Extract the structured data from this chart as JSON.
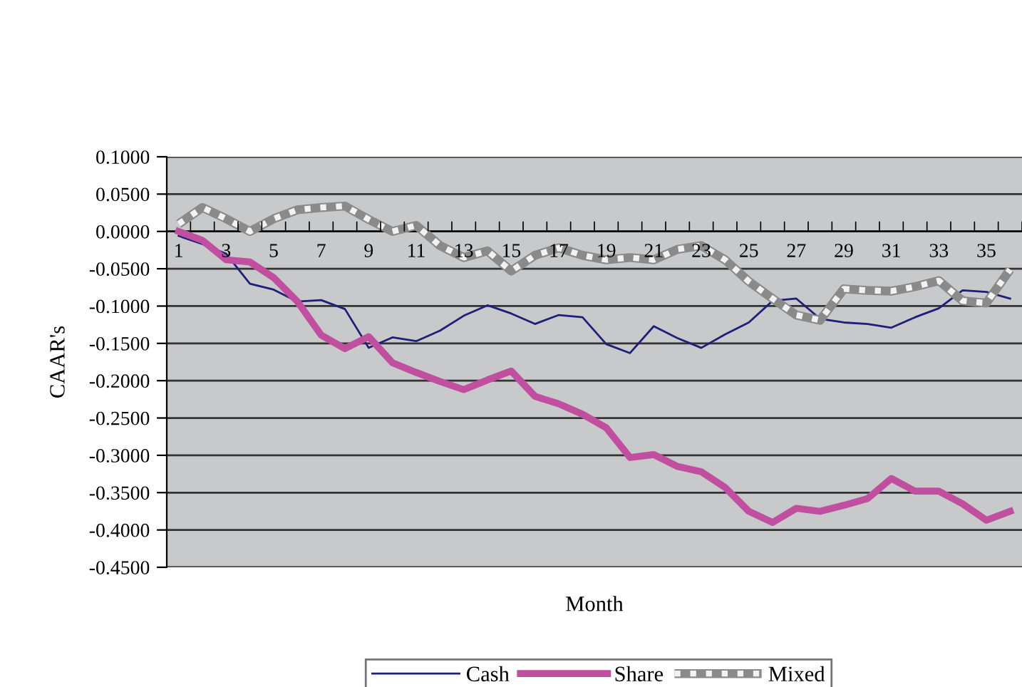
{
  "chart_data": {
    "type": "line",
    "xlabel": "Month",
    "ylabel": "CAAR's",
    "categories": [
      "1",
      null,
      "3",
      null,
      "5",
      null,
      "7",
      null,
      "9",
      null,
      "11",
      null,
      "13",
      null,
      "15",
      null,
      "17",
      null,
      "19",
      null,
      "21",
      null,
      "23",
      null,
      "25",
      null,
      "27",
      null,
      "29",
      null,
      "31",
      null,
      "33",
      null,
      "35",
      null
    ],
    "series": [
      {
        "name": "Cash",
        "color": "#1f1f7a",
        "line_style": "solid",
        "values": [
          -0.006,
          -0.017,
          -0.03,
          -0.07,
          -0.078,
          -0.094,
          -0.092,
          -0.104,
          -0.156,
          -0.142,
          -0.147,
          -0.133,
          -0.113,
          -0.099,
          -0.11,
          -0.124,
          -0.112,
          -0.115,
          -0.151,
          -0.163,
          -0.127,
          -0.143,
          -0.156,
          -0.138,
          -0.122,
          -0.093,
          -0.09,
          -0.117,
          -0.122,
          -0.124,
          -0.129,
          -0.115,
          -0.103,
          -0.079,
          -0.081,
          -0.09
        ]
      },
      {
        "name": "Share",
        "color": "#c0509f",
        "line_style": "solid",
        "values": [
          0.0,
          -0.012,
          -0.038,
          -0.041,
          -0.062,
          -0.094,
          -0.139,
          -0.157,
          -0.141,
          -0.176,
          -0.189,
          -0.201,
          -0.212,
          -0.199,
          -0.187,
          -0.221,
          -0.231,
          -0.245,
          -0.263,
          -0.303,
          -0.299,
          -0.315,
          -0.322,
          -0.343,
          -0.375,
          -0.39,
          -0.371,
          -0.375,
          -0.367,
          -0.358,
          -0.331,
          -0.348,
          -0.348,
          -0.365,
          -0.387,
          -0.375
        ]
      },
      {
        "name": "Mixed",
        "color": "#f2f2f2",
        "line_style": "dotted",
        "values": [
          0.01,
          0.032,
          0.017,
          0.0,
          0.017,
          0.029,
          0.032,
          0.034,
          0.016,
          0.0,
          0.008,
          -0.019,
          -0.035,
          -0.026,
          -0.053,
          -0.032,
          -0.022,
          -0.032,
          -0.038,
          -0.035,
          -0.038,
          -0.024,
          -0.019,
          -0.038,
          -0.067,
          -0.09,
          -0.112,
          -0.119,
          -0.077,
          -0.079,
          -0.08,
          -0.074,
          -0.066,
          -0.093,
          -0.096,
          -0.051
        ]
      }
    ],
    "ylim": [
      -0.45,
      0.1
    ],
    "yticks": [
      {
        "value": 0.1,
        "label": "0.1000"
      },
      {
        "value": 0.05,
        "label": "0.0500"
      },
      {
        "value": 0,
        "label": "0.0000"
      },
      {
        "value": -0.05,
        "label": "-0.0500"
      },
      {
        "value": -0.1,
        "label": "-0.1000"
      },
      {
        "value": -0.15,
        "label": "-0.1500"
      },
      {
        "value": -0.2,
        "label": "-0.2000"
      },
      {
        "value": -0.25,
        "label": "-0.2500"
      },
      {
        "value": -0.3,
        "label": "-0.3000"
      },
      {
        "value": -0.35,
        "label": "-0.3500"
      },
      {
        "value": -0.4,
        "label": "-0.4000"
      },
      {
        "value": -0.45,
        "label": "-0.4500"
      }
    ],
    "grid": "y",
    "legend": "bottom",
    "marker": "none"
  }
}
